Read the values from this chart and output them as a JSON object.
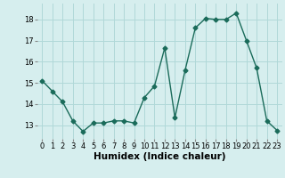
{
  "x": [
    0,
    1,
    2,
    3,
    4,
    5,
    6,
    7,
    8,
    9,
    10,
    11,
    12,
    13,
    14,
    15,
    16,
    17,
    18,
    19,
    20,
    21,
    22,
    23
  ],
  "y": [
    15.1,
    14.6,
    14.1,
    13.2,
    12.7,
    13.1,
    13.1,
    13.2,
    13.2,
    13.1,
    14.3,
    14.85,
    16.65,
    13.35,
    15.6,
    17.6,
    18.05,
    18.0,
    18.0,
    18.3,
    17.0,
    15.7,
    13.2,
    12.75
  ],
  "xlabel": "Humidex (Indice chaleur)",
  "ylim": [
    12.35,
    18.75
  ],
  "xlim": [
    -0.5,
    23.5
  ],
  "yticks": [
    13,
    14,
    15,
    16,
    17,
    18
  ],
  "xtick_labels": [
    "0",
    "1",
    "2",
    "3",
    "4",
    "5",
    "6",
    "7",
    "8",
    "9",
    "10",
    "11",
    "12",
    "13",
    "14",
    "15",
    "16",
    "17",
    "18",
    "19",
    "20",
    "21",
    "22",
    "23"
  ],
  "line_color": "#1a6b5a",
  "marker": "D",
  "markersize": 2.5,
  "linewidth": 1.0,
  "bg_color": "#d6eeee",
  "grid_color": "#b0d8d8",
  "xlabel_fontsize": 7.5,
  "tick_fontsize": 6.0
}
